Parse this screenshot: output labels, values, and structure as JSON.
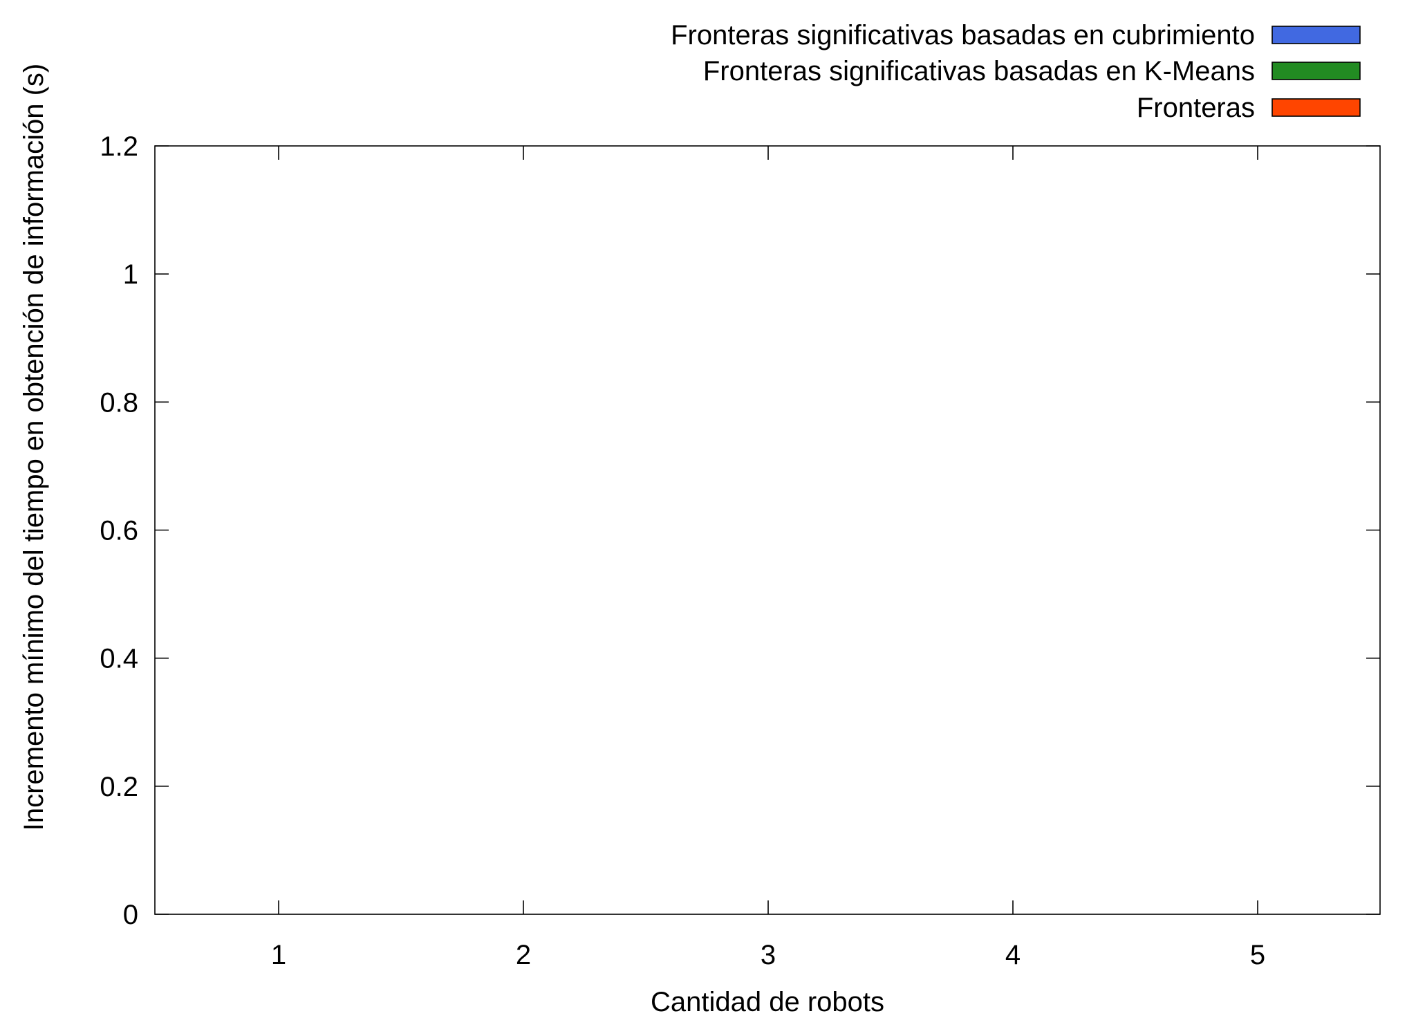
{
  "chart_data": {
    "type": "bar",
    "xlabel": "Cantidad de robots",
    "ylabel": "Incremento mínimo del tiempo en obtención de información (s)",
    "categories": [
      "1",
      "2",
      "3",
      "4",
      "5"
    ],
    "ylim": [
      0,
      1.2
    ],
    "yticks": [
      "0",
      "0.2",
      "0.4",
      "0.6",
      "0.8",
      "1",
      "1.2"
    ],
    "grid": false,
    "legend_position": "top-right (outside plot)",
    "series": [
      {
        "name": "Fronteras significativas basadas en cubrimiento",
        "color": "#4169e1",
        "values": [
          0,
          0,
          0,
          0,
          0
        ]
      },
      {
        "name": "Fronteras significativas basadas en K-Means",
        "color": "#228b22",
        "values": [
          0,
          0,
          0,
          0,
          0
        ]
      },
      {
        "name": "Fronteras",
        "color": "#ff4500",
        "values": [
          0,
          0,
          0,
          0,
          0
        ]
      }
    ]
  }
}
